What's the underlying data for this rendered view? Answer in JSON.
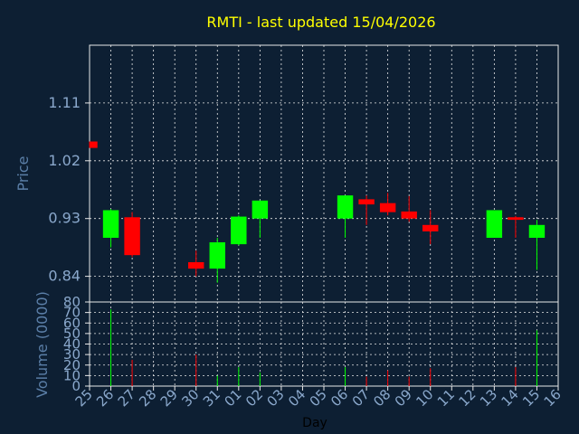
{
  "colors": {
    "background": "#0d1f33",
    "title": "#ffff00",
    "axis_label": "#5b7fa8",
    "tick_label": "#8aa8cc",
    "up": "#00ff00",
    "down": "#ff0000",
    "grid": "#e8e8e8"
  },
  "chart_data": {
    "type": "candlestick",
    "title": "RMTI - last updated 15/04/2026",
    "xlabel": "Day",
    "ylabel": "Price",
    "volume_label": "Volume (0000)",
    "grid": true,
    "categories": [
      "25",
      "26",
      "27",
      "28",
      "29",
      "30",
      "31",
      "01",
      "02",
      "03",
      "04",
      "05",
      "06",
      "07",
      "08",
      "09",
      "10",
      "11",
      "12",
      "13",
      "14",
      "15",
      "16"
    ],
    "price_ylim": [
      0.8,
      1.2
    ],
    "price_ticks": [
      0.84,
      0.93,
      1.02,
      1.11
    ],
    "price_tick_labels": [
      "0.84",
      "0.93",
      "1.02",
      "1.11"
    ],
    "volume_ylim": [
      0,
      80
    ],
    "volume_ticks": [
      0,
      10,
      20,
      30,
      40,
      50,
      60,
      70,
      80
    ],
    "volume_tick_labels": [
      "0",
      "10",
      "20",
      "30",
      "40",
      "50",
      "60",
      "70",
      "80"
    ],
    "candles": [
      {
        "day": "25",
        "open": 1.05,
        "high": 1.05,
        "low": 1.04,
        "close": 1.04,
        "volume": 0
      },
      {
        "day": "26",
        "open": 0.9,
        "high": 0.945,
        "low": 0.885,
        "close": 0.943,
        "volume": 73
      },
      {
        "day": "27",
        "open": 0.932,
        "high": 0.94,
        "low": 0.87,
        "close": 0.873,
        "volume": 25
      },
      {
        "day": "30",
        "open": 0.862,
        "high": 0.88,
        "low": 0.84,
        "close": 0.852,
        "volume": 30
      },
      {
        "day": "31",
        "open": 0.852,
        "high": 0.9,
        "low": 0.83,
        "close": 0.893,
        "volume": 10
      },
      {
        "day": "01",
        "open": 0.89,
        "high": 0.935,
        "low": 0.888,
        "close": 0.933,
        "volume": 18
      },
      {
        "day": "02",
        "open": 0.93,
        "high": 0.958,
        "low": 0.9,
        "close": 0.958,
        "volume": 13
      },
      {
        "day": "06",
        "open": 0.93,
        "high": 0.966,
        "low": 0.9,
        "close": 0.966,
        "volume": 18
      },
      {
        "day": "07",
        "open": 0.96,
        "high": 0.966,
        "low": 0.92,
        "close": 0.952,
        "volume": 9
      },
      {
        "day": "08",
        "open": 0.954,
        "high": 0.97,
        "low": 0.935,
        "close": 0.94,
        "volume": 15
      },
      {
        "day": "09",
        "open": 0.941,
        "high": 0.965,
        "low": 0.925,
        "close": 0.93,
        "volume": 9
      },
      {
        "day": "10",
        "open": 0.92,
        "high": 0.943,
        "low": 0.89,
        "close": 0.91,
        "volume": 17
      },
      {
        "day": "13",
        "open": 0.9,
        "high": 0.943,
        "low": 0.9,
        "close": 0.943,
        "volume": 0
      },
      {
        "day": "14",
        "open": 0.932,
        "high": 0.934,
        "low": 0.9,
        "close": 0.928,
        "volume": 18
      },
      {
        "day": "15",
        "open": 0.9,
        "high": 0.928,
        "low": 0.85,
        "close": 0.92,
        "volume": 53
      }
    ]
  }
}
